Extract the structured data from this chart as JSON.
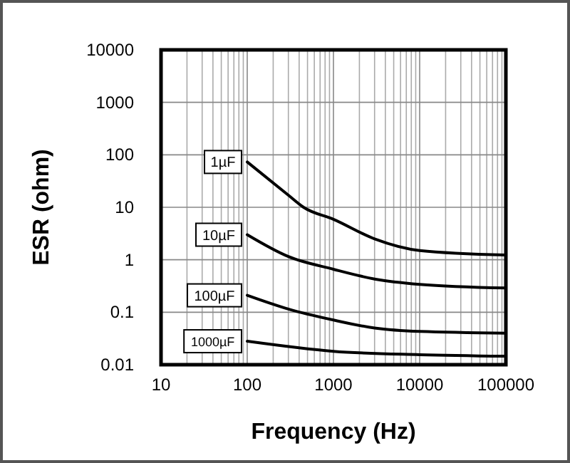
{
  "chart_data": {
    "type": "line",
    "xlabel": "Frequency (Hz)",
    "ylabel": "ESR (ohm)",
    "log": "xy",
    "grid": true,
    "marker": "none",
    "line_style": "solid",
    "xlim": [
      10,
      100000
    ],
    "xticks": [
      10,
      100,
      1000,
      10000,
      100000
    ],
    "ylim": [
      0.01,
      10000
    ],
    "yticks": [
      0.01,
      0.1,
      1,
      10,
      100,
      1000,
      10000
    ],
    "series": [
      {
        "name": "1µF",
        "color": "#000000",
        "x": [
          100,
          300,
          450,
          1000,
          3000,
          10000,
          100000
        ],
        "values": [
          73,
          17,
          10,
          5.9,
          2.5,
          1.5,
          1.23
        ]
      },
      {
        "name": "10µF",
        "color": "#000000",
        "x": [
          100,
          300,
          1000,
          3000,
          10000,
          100000
        ],
        "values": [
          3,
          1.15,
          0.66,
          0.43,
          0.34,
          0.29
        ]
      },
      {
        "name": "100µF",
        "color": "#000000",
        "x": [
          100,
          300,
          1000,
          3000,
          10000,
          100000
        ],
        "values": [
          0.21,
          0.115,
          0.071,
          0.05,
          0.043,
          0.04
        ]
      },
      {
        "name": "1000µF",
        "color": "#000000",
        "x": [
          100,
          1000,
          10000,
          100000
        ],
        "values": [
          0.028,
          0.018,
          0.0155,
          0.0145
        ]
      }
    ]
  }
}
